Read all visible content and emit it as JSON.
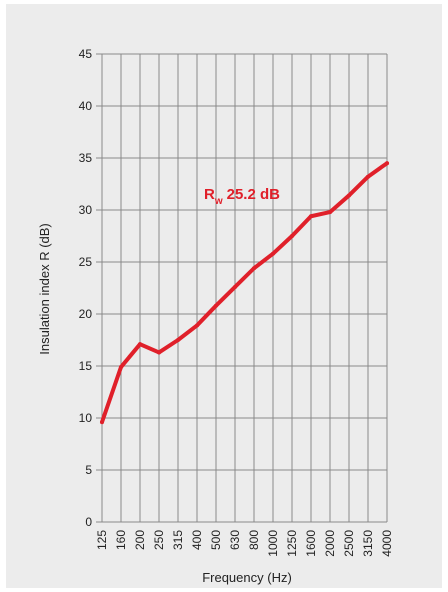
{
  "chart_data": {
    "type": "line",
    "title": "",
    "xlabel": "Frequency (Hz)",
    "ylabel": "Insulation index R (dB)",
    "ylim": [
      0,
      45
    ],
    "y_ticks": [
      0,
      5,
      10,
      15,
      20,
      25,
      30,
      35,
      40,
      45
    ],
    "grid": true,
    "categories": [
      "125",
      "160",
      "200",
      "250",
      "315",
      "400",
      "500",
      "630",
      "800",
      "1000",
      "1250",
      "1600",
      "2000",
      "2500",
      "3150",
      "4000"
    ],
    "series": [
      {
        "color": "#e0202a",
        "values": [
          9.6,
          14.9,
          17.1,
          16.3,
          17.5,
          18.9,
          20.8,
          22.6,
          24.4,
          25.8,
          27.5,
          29.4,
          29.8,
          31.4,
          33.2,
          34.5
        ]
      }
    ],
    "annotation": {
      "main": "R",
      "sub": "w",
      "value": "25.2 dB"
    }
  }
}
